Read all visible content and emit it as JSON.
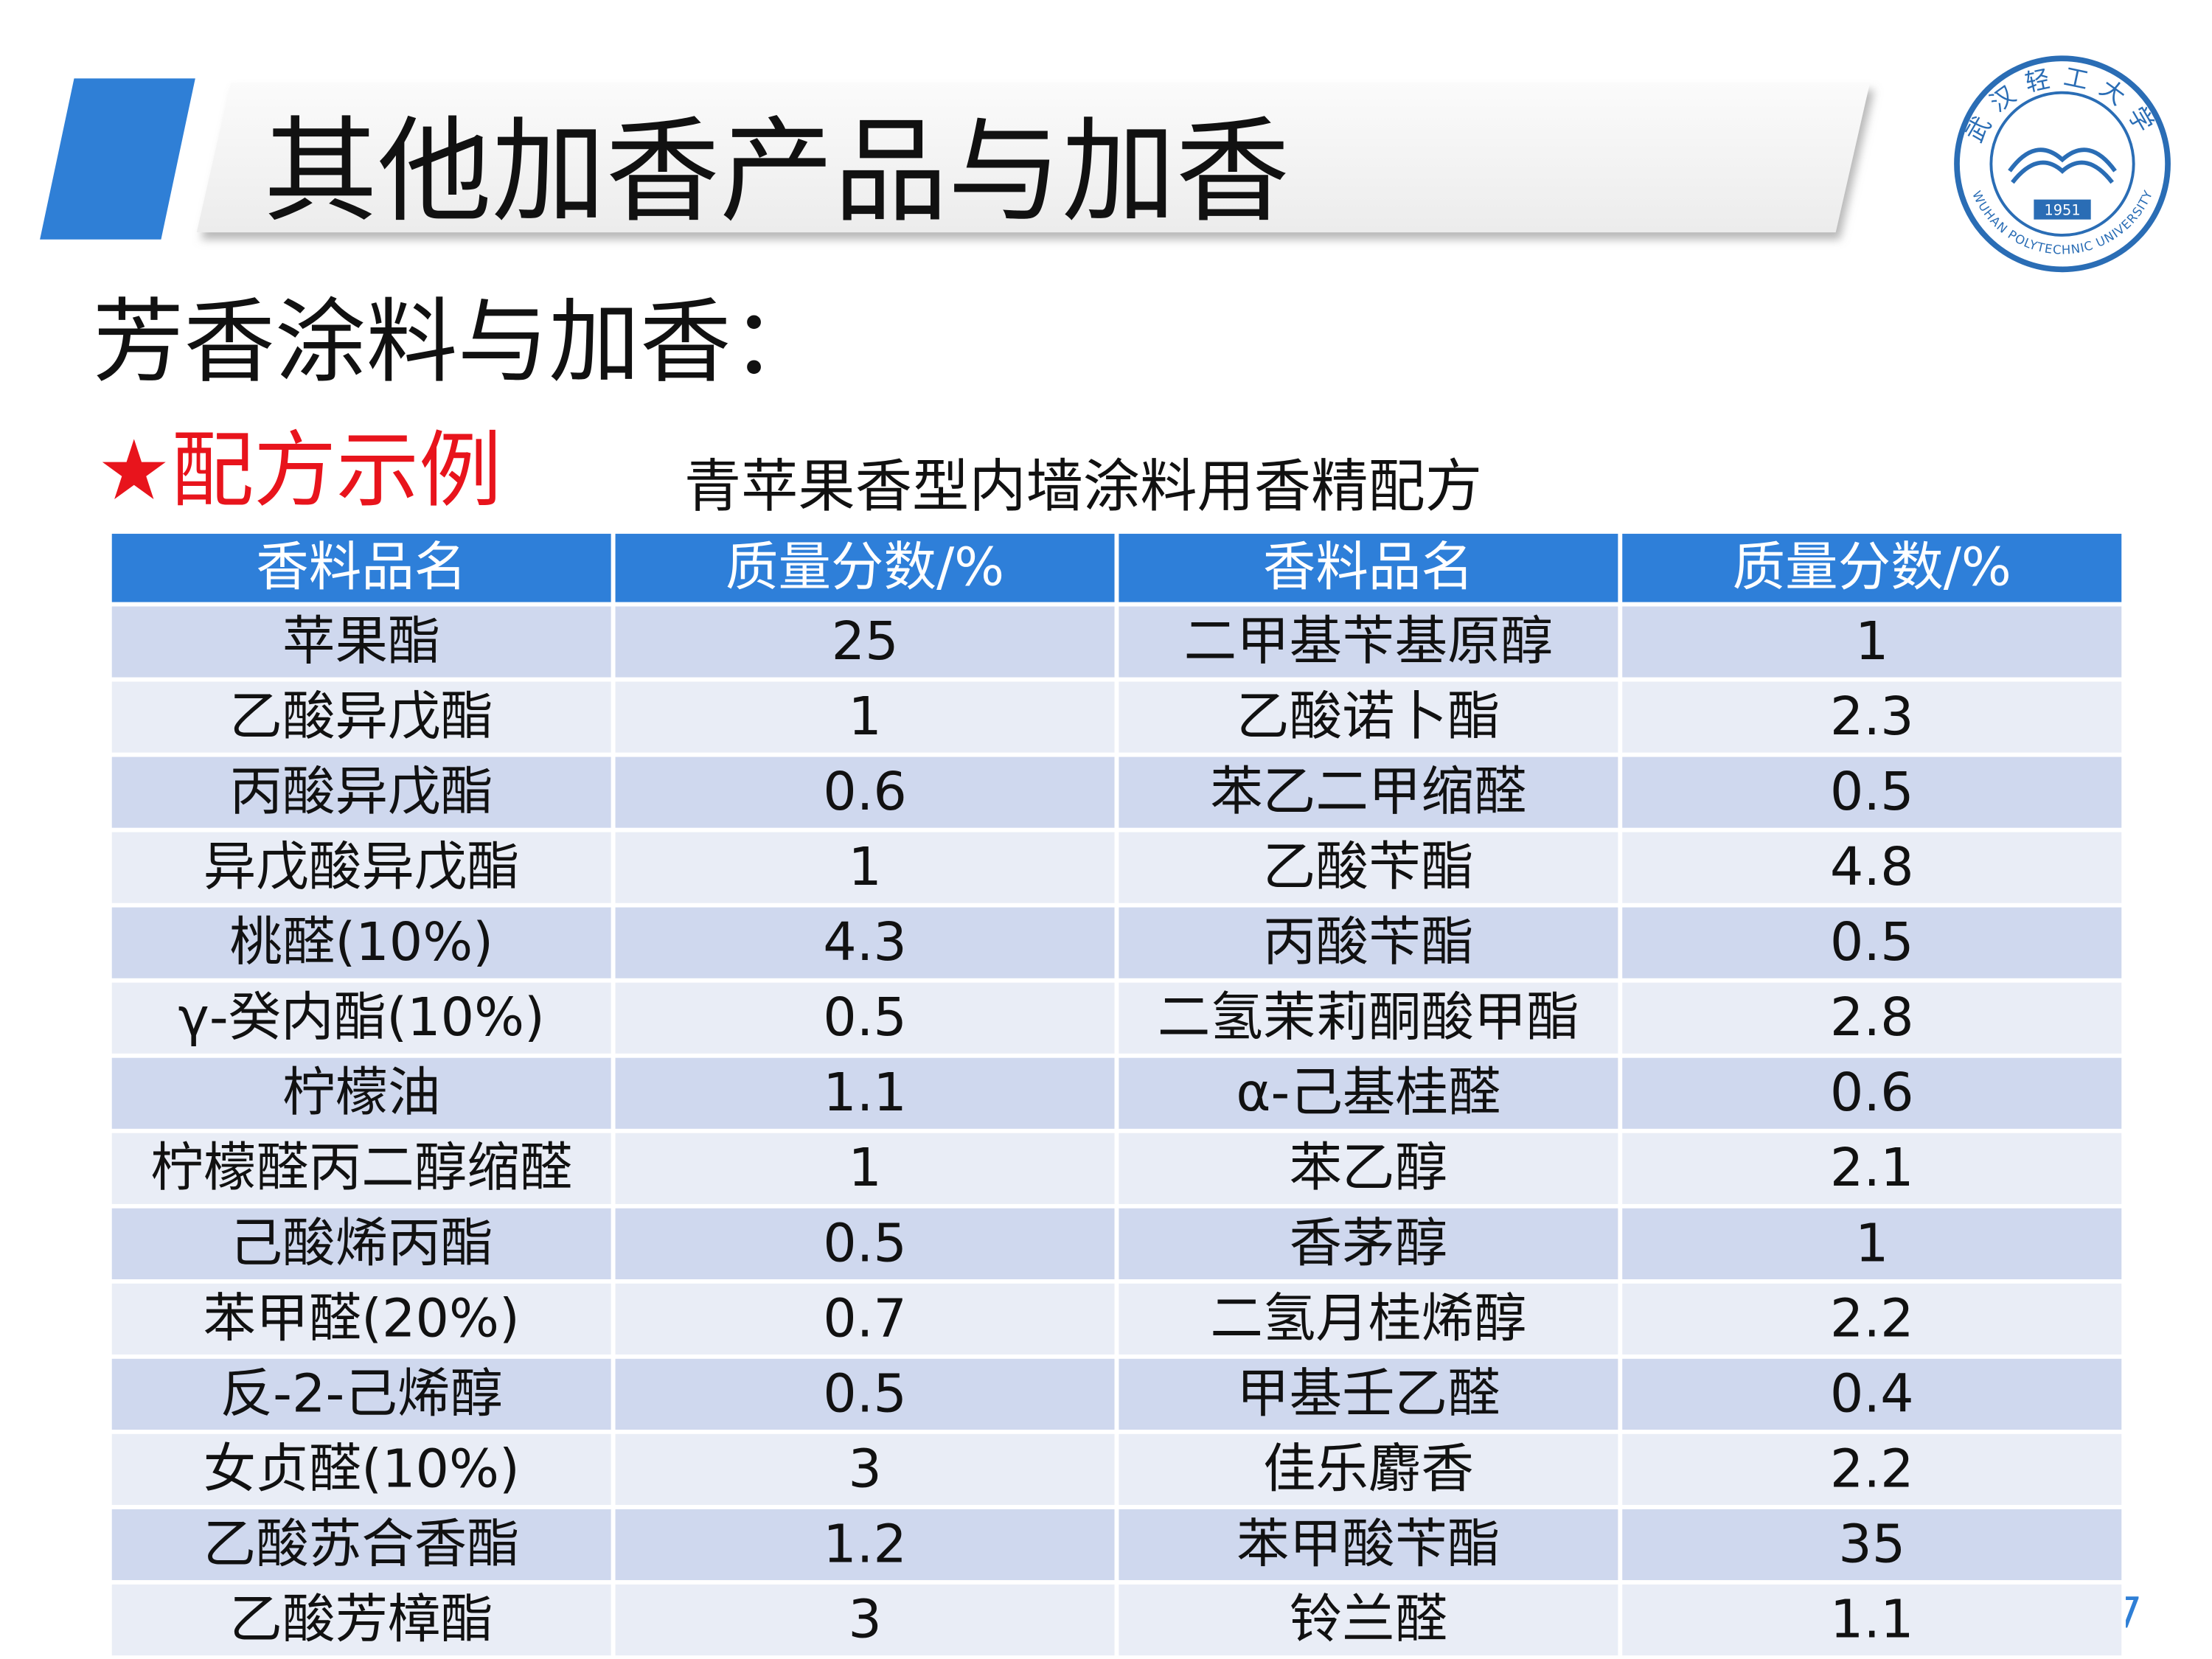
{
  "header": {
    "title": "其他加香产品与加香"
  },
  "logo": {
    "name_cn": "武汉轻工大学",
    "name_en": "WUHAN POLYTECHNIC UNIVERSITY",
    "year": "1951"
  },
  "subtitle": "芳香涂料与加香：",
  "section": "★配方示例",
  "table": {
    "caption": "青苹果香型内墙涂料用香精配方",
    "columns": [
      "香料品名",
      "质量分数/%",
      "香料品名",
      "质量分数/%"
    ],
    "rows": [
      [
        "苹果酯",
        "25",
        "二甲基苄基原醇",
        "1"
      ],
      [
        "乙酸异戊酯",
        "1",
        "乙酸诺卜酯",
        "2.3"
      ],
      [
        "丙酸异戊酯",
        "0.6",
        "苯乙二甲缩醛",
        "0.5"
      ],
      [
        "异戊酸异戊酯",
        "1",
        "乙酸苄酯",
        "4.8"
      ],
      [
        "桃醛(10%)",
        "4.3",
        "丙酸苄酯",
        "0.5"
      ],
      [
        "γ-癸内酯(10%)",
        "0.5",
        "二氢茉莉酮酸甲酯",
        "2.8"
      ],
      [
        "柠檬油",
        "1.1",
        "α-己基桂醛",
        "0.6"
      ],
      [
        "柠檬醛丙二醇缩醛",
        "1",
        "苯乙醇",
        "2.1"
      ],
      [
        "己酸烯丙酯",
        "0.5",
        "香茅醇",
        "1"
      ],
      [
        "苯甲醛(20%)",
        "0.7",
        "二氢月桂烯醇",
        "2.2"
      ],
      [
        "反-2-己烯醇",
        "0.5",
        "甲基壬乙醛",
        "0.4"
      ],
      [
        "女贞醛(10%)",
        "3",
        "佳乐麝香",
        "2.2"
      ],
      [
        "乙酸苏合香酯",
        "1.2",
        "苯甲酸苄酯",
        "35"
      ],
      [
        "乙酸芳樟酯",
        "3",
        "铃兰醛",
        "1.1"
      ]
    ]
  },
  "page_number": "7"
}
